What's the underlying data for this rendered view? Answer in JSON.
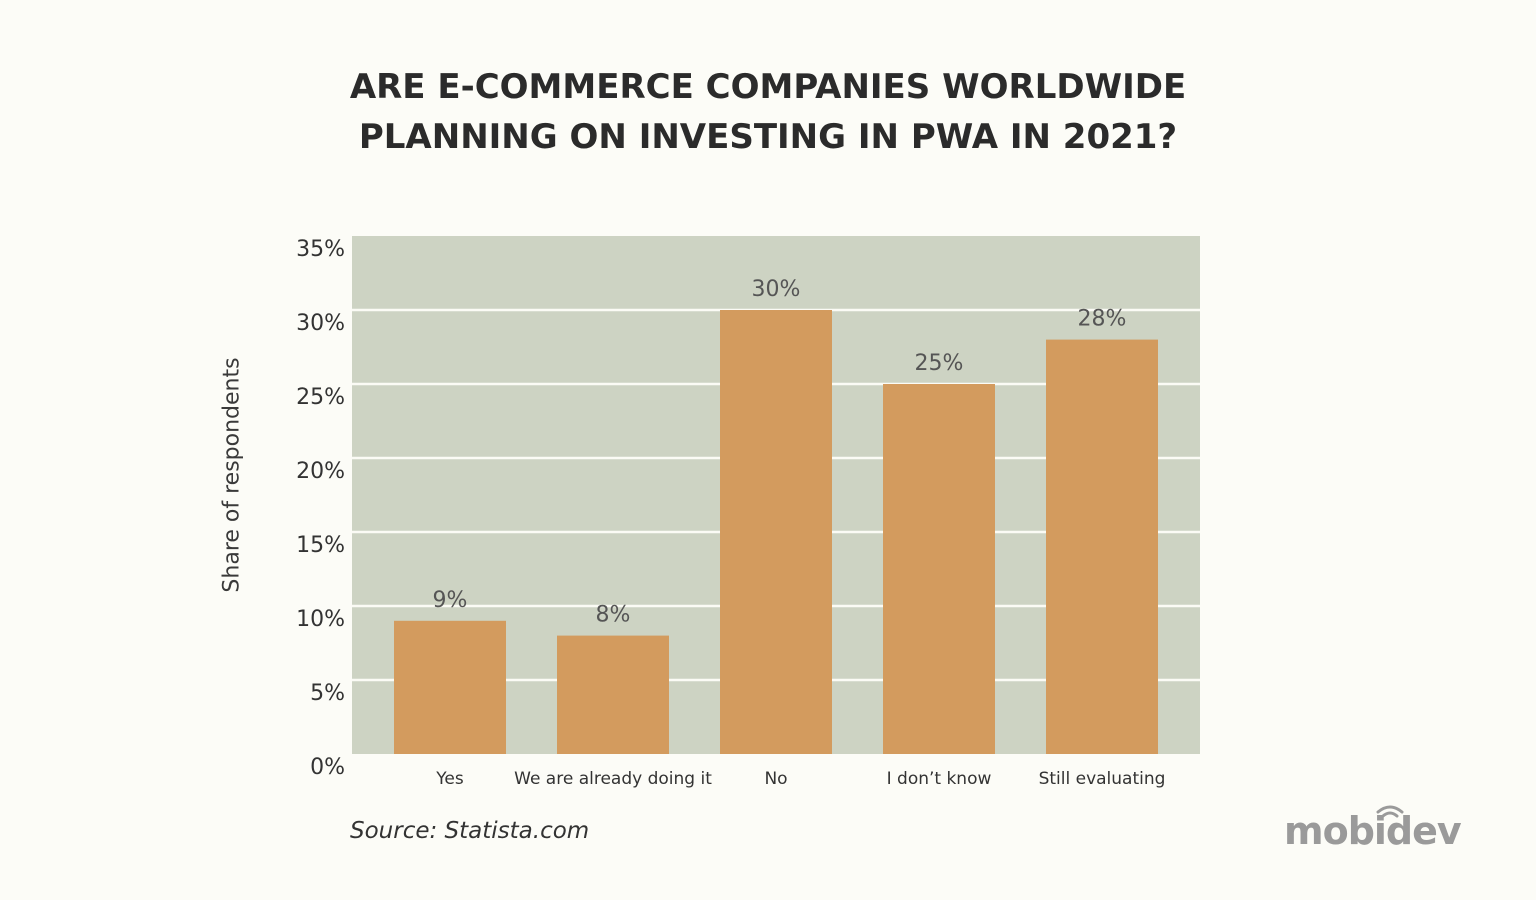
{
  "chart_data": {
    "type": "bar",
    "title": "ARE E-COMMERCE COMPANIES WORLDWIDE\nPLANNING ON INVESTING IN PWA IN 2021?",
    "xlabel": "",
    "ylabel": "Share of respondents",
    "categories": [
      "Yes",
      "We are already doing it",
      "No",
      "I don’t know",
      "Still evaluating"
    ],
    "values": [
      9,
      8,
      30,
      25,
      28
    ],
    "data_labels": [
      "9%",
      "8%",
      "30%",
      "25%",
      "28%"
    ],
    "ylim": [
      0,
      35
    ],
    "yticks": [
      0,
      5,
      10,
      15,
      20,
      25,
      30,
      35
    ],
    "ytick_labels": [
      "0%",
      "5%",
      "10%",
      "15%",
      "20%",
      "25%",
      "30%",
      "35%"
    ],
    "grid": true,
    "legend": "none",
    "colors": {
      "bar": "#d39b5e",
      "plot_background": "#cdd3c3",
      "gridline": "#fbfbf5"
    }
  },
  "source": "Source: Statista.com",
  "logo": "mobidev"
}
